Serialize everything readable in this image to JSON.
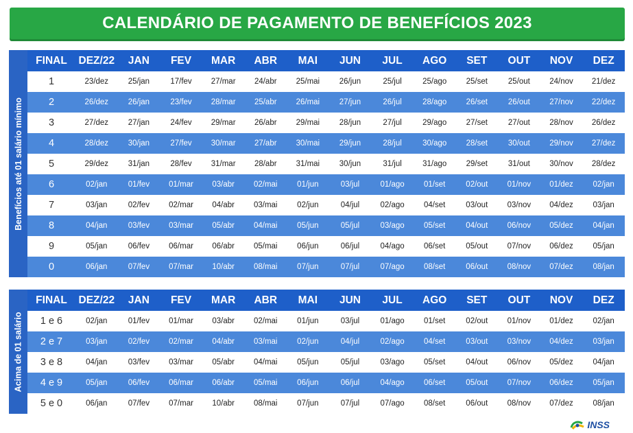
{
  "title": "CALENDÁRIO DE PAGAMENTO DE BENEFÍCIOS 2023",
  "colors": {
    "green": "#28a745",
    "header_blue": "#1e5fc9",
    "row_blue": "#4b88da",
    "side_blue": "#2a64c4"
  },
  "headers": [
    "FINAL",
    "DEZ/22",
    "JAN",
    "FEV",
    "MAR",
    "ABR",
    "MAI",
    "JUN",
    "JUL",
    "AGO",
    "SET",
    "OUT",
    "NOV",
    "DEZ"
  ],
  "section1": {
    "side_label": "Benefícios até 01 salário mínimo",
    "rows": [
      {
        "final": "1",
        "dates": [
          "23/dez",
          "25/jan",
          "17/fev",
          "27/mar",
          "24/abr",
          "25/mai",
          "26/jun",
          "25/jul",
          "25/ago",
          "25/set",
          "25/out",
          "24/nov",
          "21/dez"
        ]
      },
      {
        "final": "2",
        "dates": [
          "26/dez",
          "26/jan",
          "23/fev",
          "28/mar",
          "25/abr",
          "26/mai",
          "27/jun",
          "26/jul",
          "28/ago",
          "26/set",
          "26/out",
          "27/nov",
          "22/dez"
        ]
      },
      {
        "final": "3",
        "dates": [
          "27/dez",
          "27/jan",
          "24/fev",
          "29/mar",
          "26/abr",
          "29/mai",
          "28/jun",
          "27/jul",
          "29/ago",
          "27/set",
          "27/out",
          "28/nov",
          "26/dez"
        ]
      },
      {
        "final": "4",
        "dates": [
          "28/dez",
          "30/jan",
          "27/fev",
          "30/mar",
          "27/abr",
          "30/mai",
          "29/jun",
          "28/jul",
          "30/ago",
          "28/set",
          "30/out",
          "29/nov",
          "27/dez"
        ]
      },
      {
        "final": "5",
        "dates": [
          "29/dez",
          "31/jan",
          "28/fev",
          "31/mar",
          "28/abr",
          "31/mai",
          "30/jun",
          "31/jul",
          "31/ago",
          "29/set",
          "31/out",
          "30/nov",
          "28/dez"
        ]
      },
      {
        "final": "6",
        "dates": [
          "02/jan",
          "01/fev",
          "01/mar",
          "03/abr",
          "02/mai",
          "01/jun",
          "03/jul",
          "01/ago",
          "01/set",
          "02/out",
          "01/nov",
          "01/dez",
          "02/jan"
        ]
      },
      {
        "final": "7",
        "dates": [
          "03/jan",
          "02/fev",
          "02/mar",
          "04/abr",
          "03/mai",
          "02/jun",
          "04/jul",
          "02/ago",
          "04/set",
          "03/out",
          "03/nov",
          "04/dez",
          "03/jan"
        ]
      },
      {
        "final": "8",
        "dates": [
          "04/jan",
          "03/fev",
          "03/mar",
          "05/abr",
          "04/mai",
          "05/jun",
          "05/jul",
          "03/ago",
          "05/set",
          "04/out",
          "06/nov",
          "05/dez",
          "04/jan"
        ]
      },
      {
        "final": "9",
        "dates": [
          "05/jan",
          "06/fev",
          "06/mar",
          "06/abr",
          "05/mai",
          "06/jun",
          "06/jul",
          "04/ago",
          "06/set",
          "05/out",
          "07/nov",
          "06/dez",
          "05/jan"
        ]
      },
      {
        "final": "0",
        "dates": [
          "06/jan",
          "07/fev",
          "07/mar",
          "10/abr",
          "08/mai",
          "07/jun",
          "07/jul",
          "07/ago",
          "08/set",
          "06/out",
          "08/nov",
          "07/dez",
          "08/jan"
        ]
      }
    ]
  },
  "section2": {
    "side_label": "Acima de 01 salário",
    "rows": [
      {
        "final": "1 e 6",
        "dates": [
          "02/jan",
          "01/fev",
          "01/mar",
          "03/abr",
          "02/mai",
          "01/jun",
          "03/jul",
          "01/ago",
          "01/set",
          "02/out",
          "01/nov",
          "01/dez",
          "02/jan"
        ]
      },
      {
        "final": "2 e 7",
        "dates": [
          "03/jan",
          "02/fev",
          "02/mar",
          "04/abr",
          "03/mai",
          "02/jun",
          "04/jul",
          "02/ago",
          "04/set",
          "03/out",
          "03/nov",
          "04/dez",
          "03/jan"
        ]
      },
      {
        "final": "3 e 8",
        "dates": [
          "04/jan",
          "03/fev",
          "03/mar",
          "05/abr",
          "04/mai",
          "05/jun",
          "05/jul",
          "03/ago",
          "05/set",
          "04/out",
          "06/nov",
          "05/dez",
          "04/jan"
        ]
      },
      {
        "final": "4 e 9",
        "dates": [
          "05/jan",
          "06/fev",
          "06/mar",
          "06/abr",
          "05/mai",
          "06/jun",
          "06/jul",
          "04/ago",
          "06/set",
          "05/out",
          "07/nov",
          "06/dez",
          "05/jan"
        ]
      },
      {
        "final": "5 e 0",
        "dates": [
          "06/jan",
          "07/fev",
          "07/mar",
          "10/abr",
          "08/mai",
          "07/jun",
          "07/jul",
          "07/ago",
          "08/set",
          "06/out",
          "08/nov",
          "07/dez",
          "08/jan"
        ]
      }
    ]
  },
  "logo": {
    "text": "INSS",
    "icon": "inss-logo-icon"
  }
}
